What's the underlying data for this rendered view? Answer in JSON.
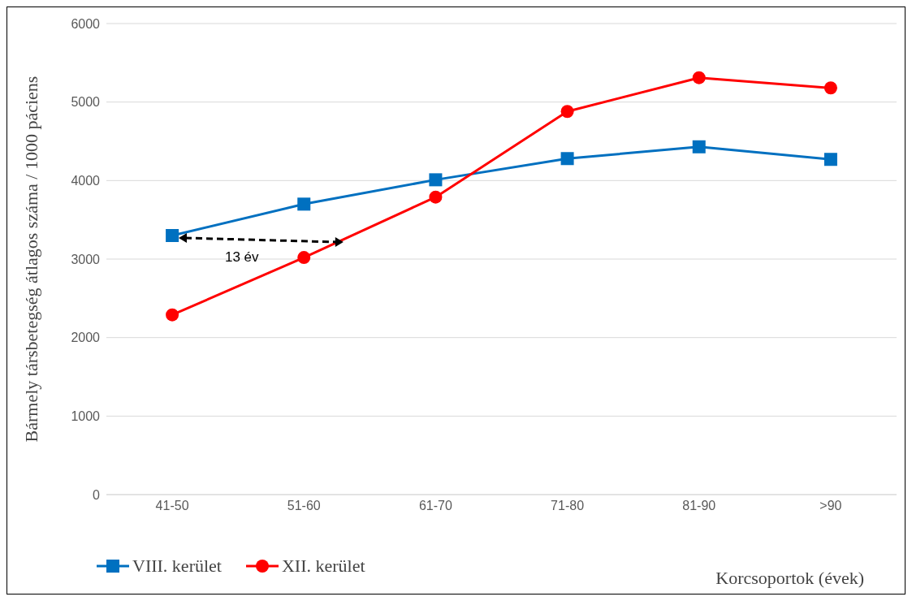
{
  "chart_data": {
    "type": "line",
    "ylabel": "Bármely társbetegség átlagos száma / 1000 páciens",
    "xlabel": "Korcsoportok (évek)",
    "categories": [
      "41-50",
      "51-60",
      "61-70",
      "71-80",
      "81-90",
      ">90"
    ],
    "series": [
      {
        "name": "VIII. kerület",
        "color": "#0070c0",
        "marker": "square",
        "values": [
          3300,
          3700,
          4010,
          4280,
          4430,
          4270
        ]
      },
      {
        "name": "XII. kerület",
        "color": "#ff0000",
        "marker": "circle",
        "values": [
          2290,
          3020,
          3790,
          4880,
          5310,
          5180
        ]
      }
    ],
    "ylim": [
      0,
      6000
    ],
    "yticks": [
      0,
      1000,
      2000,
      3000,
      4000,
      5000,
      6000
    ],
    "grid": "y",
    "legend": "bottom left",
    "line_style": "solid",
    "annotations": [
      "13 év"
    ]
  }
}
